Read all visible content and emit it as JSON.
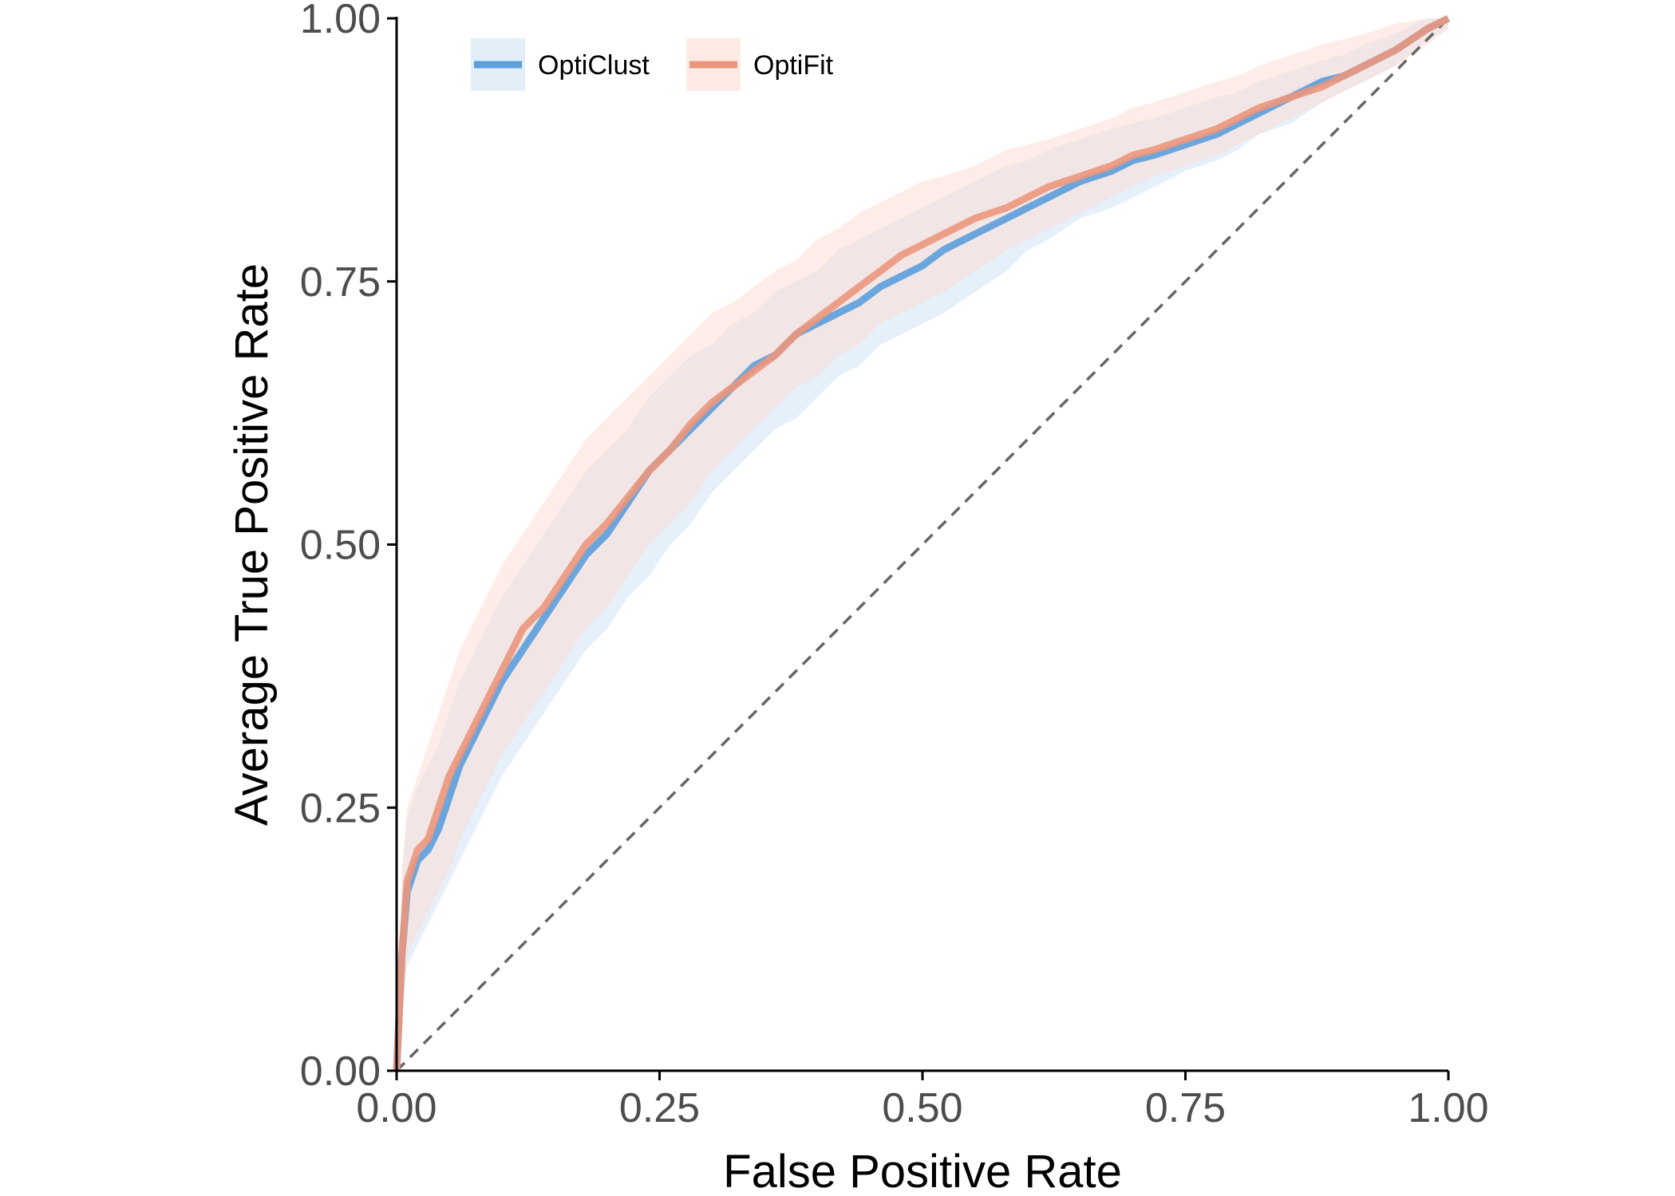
{
  "chart_data": {
    "type": "line",
    "xlabel": "False Positive Rate",
    "ylabel": "Average True Positive Rate",
    "xlim": [
      0,
      1
    ],
    "ylim": [
      0,
      1
    ],
    "x_ticks": [
      "0.00",
      "0.25",
      "0.50",
      "0.75",
      "1.00"
    ],
    "y_ticks": [
      "0.00",
      "0.25",
      "0.50",
      "0.75",
      "1.00"
    ],
    "grid": false,
    "legend_position": "top-left",
    "reference_line": {
      "from": [
        0,
        0
      ],
      "to": [
        1,
        1
      ],
      "style": "dashed",
      "color": "#666666"
    },
    "series": [
      {
        "name": "OptiClust",
        "color": "#5b9fdb",
        "band_color": "#cfe4f5",
        "x": [
          0.0,
          0.005,
          0.01,
          0.02,
          0.03,
          0.04,
          0.05,
          0.06,
          0.08,
          0.1,
          0.12,
          0.14,
          0.16,
          0.18,
          0.2,
          0.22,
          0.24,
          0.26,
          0.28,
          0.3,
          0.32,
          0.34,
          0.36,
          0.38,
          0.4,
          0.42,
          0.44,
          0.46,
          0.48,
          0.5,
          0.52,
          0.55,
          0.58,
          0.6,
          0.62,
          0.65,
          0.68,
          0.7,
          0.72,
          0.75,
          0.78,
          0.8,
          0.82,
          0.85,
          0.88,
          0.9,
          0.92,
          0.95,
          0.98,
          1.0
        ],
        "y": [
          0.0,
          0.11,
          0.17,
          0.2,
          0.21,
          0.23,
          0.26,
          0.29,
          0.33,
          0.37,
          0.4,
          0.43,
          0.46,
          0.49,
          0.51,
          0.54,
          0.57,
          0.59,
          0.61,
          0.63,
          0.65,
          0.67,
          0.68,
          0.7,
          0.71,
          0.72,
          0.73,
          0.745,
          0.755,
          0.765,
          0.78,
          0.795,
          0.81,
          0.82,
          0.83,
          0.845,
          0.855,
          0.865,
          0.87,
          0.88,
          0.89,
          0.9,
          0.91,
          0.925,
          0.94,
          0.945,
          0.955,
          0.97,
          0.99,
          1.0
        ],
        "lower": [
          0.0,
          0.05,
          0.1,
          0.12,
          0.14,
          0.16,
          0.18,
          0.2,
          0.24,
          0.28,
          0.31,
          0.34,
          0.37,
          0.4,
          0.42,
          0.45,
          0.47,
          0.5,
          0.52,
          0.55,
          0.57,
          0.59,
          0.61,
          0.62,
          0.64,
          0.66,
          0.67,
          0.69,
          0.7,
          0.71,
          0.72,
          0.74,
          0.76,
          0.78,
          0.79,
          0.81,
          0.82,
          0.83,
          0.84,
          0.855,
          0.865,
          0.875,
          0.89,
          0.9,
          0.92,
          0.93,
          0.94,
          0.955,
          0.98,
          0.99
        ],
        "upper": [
          0.0,
          0.18,
          0.24,
          0.27,
          0.29,
          0.31,
          0.34,
          0.37,
          0.41,
          0.45,
          0.48,
          0.51,
          0.54,
          0.57,
          0.59,
          0.61,
          0.64,
          0.66,
          0.68,
          0.69,
          0.71,
          0.72,
          0.74,
          0.75,
          0.76,
          0.78,
          0.79,
          0.8,
          0.81,
          0.82,
          0.83,
          0.845,
          0.86,
          0.865,
          0.875,
          0.885,
          0.895,
          0.9,
          0.905,
          0.915,
          0.925,
          0.93,
          0.94,
          0.95,
          0.96,
          0.965,
          0.975,
          0.985,
          1.0,
          1.0
        ]
      },
      {
        "name": "OptiFit",
        "color": "#ec967c",
        "band_color": "#fbdcd3",
        "x": [
          0.0,
          0.005,
          0.01,
          0.02,
          0.03,
          0.04,
          0.05,
          0.06,
          0.08,
          0.1,
          0.12,
          0.14,
          0.16,
          0.18,
          0.2,
          0.22,
          0.24,
          0.26,
          0.28,
          0.3,
          0.32,
          0.34,
          0.36,
          0.38,
          0.4,
          0.42,
          0.44,
          0.46,
          0.48,
          0.5,
          0.52,
          0.55,
          0.58,
          0.6,
          0.62,
          0.65,
          0.68,
          0.7,
          0.72,
          0.75,
          0.78,
          0.8,
          0.82,
          0.85,
          0.88,
          0.9,
          0.92,
          0.95,
          0.98,
          1.0
        ],
        "y": [
          0.0,
          0.11,
          0.18,
          0.21,
          0.22,
          0.25,
          0.28,
          0.3,
          0.34,
          0.38,
          0.42,
          0.44,
          0.47,
          0.5,
          0.52,
          0.545,
          0.57,
          0.59,
          0.615,
          0.635,
          0.65,
          0.665,
          0.68,
          0.7,
          0.715,
          0.73,
          0.745,
          0.76,
          0.775,
          0.785,
          0.795,
          0.81,
          0.82,
          0.83,
          0.84,
          0.85,
          0.86,
          0.87,
          0.875,
          0.885,
          0.895,
          0.905,
          0.915,
          0.925,
          0.935,
          0.945,
          0.955,
          0.97,
          0.99,
          1.0
        ],
        "lower": [
          0.0,
          0.06,
          0.11,
          0.13,
          0.15,
          0.17,
          0.19,
          0.22,
          0.26,
          0.3,
          0.33,
          0.36,
          0.39,
          0.42,
          0.44,
          0.47,
          0.5,
          0.52,
          0.54,
          0.57,
          0.59,
          0.61,
          0.63,
          0.65,
          0.66,
          0.68,
          0.69,
          0.71,
          0.72,
          0.73,
          0.74,
          0.76,
          0.78,
          0.79,
          0.8,
          0.815,
          0.83,
          0.84,
          0.85,
          0.86,
          0.87,
          0.88,
          0.89,
          0.905,
          0.92,
          0.93,
          0.94,
          0.955,
          0.975,
          0.99
        ],
        "upper": [
          0.0,
          0.19,
          0.25,
          0.28,
          0.31,
          0.34,
          0.37,
          0.4,
          0.44,
          0.48,
          0.51,
          0.54,
          0.57,
          0.6,
          0.62,
          0.64,
          0.66,
          0.68,
          0.7,
          0.72,
          0.73,
          0.745,
          0.76,
          0.77,
          0.79,
          0.8,
          0.815,
          0.825,
          0.835,
          0.845,
          0.85,
          0.86,
          0.875,
          0.88,
          0.885,
          0.895,
          0.905,
          0.915,
          0.92,
          0.93,
          0.94,
          0.945,
          0.955,
          0.965,
          0.975,
          0.98,
          0.985,
          0.995,
          1.0,
          1.0
        ]
      }
    ]
  }
}
